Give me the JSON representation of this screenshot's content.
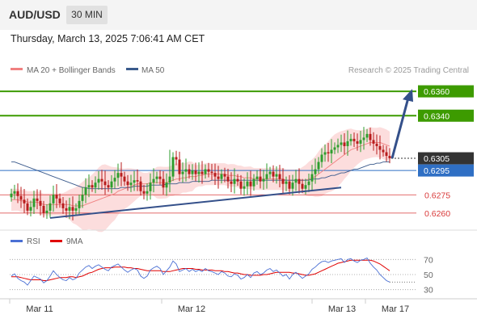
{
  "header": {
    "symbol": "AUD/USD",
    "timeframe": "30 MIN",
    "datetime": "Thursday, March 13, 2025 7:06:41 AM CET"
  },
  "legend": {
    "items": [
      {
        "label": "MA 20 + Bollinger Bands",
        "color": "#f08080"
      },
      {
        "label": "MA 50",
        "color": "#3a5a8c"
      }
    ],
    "credit": "Research © 2025 Trading Central"
  },
  "colors": {
    "bull": "#2e9e2e",
    "bear": "#b81d1d",
    "resistance": "#3d9b00",
    "support": "#d93a3a",
    "current": "#333333",
    "pivot": "#2f6fc4",
    "trendline": "#34508a",
    "bands": "#fcdddd",
    "ma20": "#f08080",
    "ma50": "#3a5a8c",
    "rsi": "#4a6fd4",
    "rsi_ma": "#e00000"
  },
  "chart_data": [
    {
      "type": "candlestick",
      "title": "AUD/USD",
      "price_range": [
        0.6248,
        0.6372
      ],
      "x_tick_labels": [
        "Mar 11",
        "Mar 12",
        "Mar 13",
        "Mar 17"
      ],
      "levels": [
        {
          "value": 0.636,
          "label": "0.6360",
          "kind": "resistance"
        },
        {
          "value": 0.634,
          "label": "0.6340",
          "kind": "resistance"
        },
        {
          "value": 0.6305,
          "label": "0.6305",
          "kind": "current"
        },
        {
          "value": 0.6295,
          "label": "0.6295",
          "kind": "pivot"
        },
        {
          "value": 0.6275,
          "label": "0.6275",
          "kind": "support"
        },
        {
          "value": 0.626,
          "label": "0.6260",
          "kind": "support"
        }
      ],
      "support_trendline": [
        {
          "bar": 0,
          "price": 0.6256
        },
        {
          "bar": 106,
          "price": 0.6281
        }
      ],
      "forecast_arrow": [
        {
          "bar": 117,
          "price": 0.6305
        },
        {
          "bar": 122,
          "price": 0.636
        }
      ],
      "series": [
        {
          "name": "Close",
          "values": [
            0.6276,
            0.6278,
            0.6274,
            0.6271,
            0.6268,
            0.6262,
            0.6265,
            0.6272,
            0.627,
            0.6266,
            0.626,
            0.6262,
            0.6268,
            0.6275,
            0.6272,
            0.6268,
            0.6264,
            0.6262,
            0.6265,
            0.6262,
            0.6264,
            0.627,
            0.6275,
            0.6281,
            0.6283,
            0.6281,
            0.6285,
            0.6288,
            0.6286,
            0.6283,
            0.6281,
            0.6286,
            0.6289,
            0.6293,
            0.629,
            0.6286,
            0.6283,
            0.6285,
            0.6287,
            0.6286,
            0.6278,
            0.6276,
            0.6278,
            0.6285,
            0.6288,
            0.629,
            0.6288,
            0.6281,
            0.6285,
            0.629,
            0.6306,
            0.6304,
            0.6292,
            0.6294,
            0.6296,
            0.6292,
            0.6295,
            0.6292,
            0.6294,
            0.6292,
            0.6296,
            0.6294,
            0.6293,
            0.629,
            0.6288,
            0.6292,
            0.629,
            0.6286,
            0.6284,
            0.6288,
            0.6286,
            0.628,
            0.6282,
            0.6286,
            0.6282,
            0.6288,
            0.629,
            0.6286,
            0.6288,
            0.6292,
            0.6294,
            0.629,
            0.6292,
            0.6288,
            0.6284,
            0.6286,
            0.628,
            0.6285,
            0.6288,
            0.6284,
            0.628,
            0.6283,
            0.6286,
            0.6292,
            0.6296,
            0.6302,
            0.6308,
            0.631,
            0.6309,
            0.6312,
            0.6314,
            0.6316,
            0.6318,
            0.6315,
            0.6319,
            0.6321,
            0.6319,
            0.6317,
            0.632,
            0.6322,
            0.6325,
            0.632,
            0.6317,
            0.6315,
            0.6312,
            0.631,
            0.6307,
            0.6305
          ]
        },
        {
          "name": "MA 20",
          "values": [
            0.6271,
            0.6271,
            0.6271,
            0.627,
            0.627,
            0.6269,
            0.6269,
            0.6269,
            0.6269,
            0.6268,
            0.6267,
            0.6267,
            0.6267,
            0.6267,
            0.6267,
            0.6267,
            0.6267,
            0.6267,
            0.6267,
            0.6266,
            0.6266,
            0.6266,
            0.6266,
            0.6267,
            0.6268,
            0.6269,
            0.627,
            0.6271,
            0.6272,
            0.6273,
            0.6274,
            0.6275,
            0.6276,
            0.6278,
            0.6279,
            0.628,
            0.6281,
            0.6282,
            0.6283,
            0.6284,
            0.6284,
            0.6284,
            0.6284,
            0.6285,
            0.6285,
            0.6285,
            0.6285,
            0.6285,
            0.6285,
            0.6286,
            0.6287,
            0.6288,
            0.6288,
            0.6289,
            0.6289,
            0.629,
            0.629,
            0.629,
            0.6291,
            0.6291,
            0.6292,
            0.6292,
            0.6292,
            0.6292,
            0.6292,
            0.6292,
            0.6292,
            0.6291,
            0.6291,
            0.6291,
            0.629,
            0.629,
            0.6289,
            0.6289,
            0.6289,
            0.6288,
            0.6288,
            0.6288,
            0.6288,
            0.6288,
            0.6288,
            0.6288,
            0.6288,
            0.6288,
            0.6288,
            0.6287,
            0.6287,
            0.6287,
            0.6287,
            0.6287,
            0.6287,
            0.6287,
            0.6288,
            0.6289,
            0.629,
            0.6292,
            0.6294,
            0.6296,
            0.6298,
            0.63,
            0.6302,
            0.6304,
            0.6306,
            0.6308,
            0.631,
            0.6312,
            0.6313,
            0.6314,
            0.6315,
            0.6316,
            0.6317,
            0.6318,
            0.6318,
            0.6318,
            0.6318,
            0.6317,
            0.6316,
            0.6315
          ]
        },
        {
          "name": "MA 50",
          "values": [
            0.6302,
            0.6302,
            0.6301,
            0.63,
            0.6299,
            0.6298,
            0.6297,
            0.6296,
            0.6295,
            0.6294,
            0.6293,
            0.6292,
            0.6291,
            0.629,
            0.6289,
            0.6288,
            0.6287,
            0.6286,
            0.6285,
            0.6284,
            0.6283,
            0.6282,
            0.6281,
            0.6281,
            0.628,
            0.628,
            0.628,
            0.628,
            0.628,
            0.628,
            0.628,
            0.628,
            0.628,
            0.628,
            0.6281,
            0.6281,
            0.6281,
            0.6281,
            0.6282,
            0.6282,
            0.6282,
            0.6282,
            0.6282,
            0.6283,
            0.6283,
            0.6283,
            0.6283,
            0.6283,
            0.6284,
            0.6284,
            0.6284,
            0.6284,
            0.6285,
            0.6285,
            0.6285,
            0.6285,
            0.6286,
            0.6286,
            0.6286,
            0.6286,
            0.6286,
            0.6286,
            0.6287,
            0.6287,
            0.6287,
            0.6287,
            0.6287,
            0.6287,
            0.6287,
            0.6287,
            0.6287,
            0.6287,
            0.6287,
            0.6287,
            0.6287,
            0.6287,
            0.6287,
            0.6287,
            0.6287,
            0.6287,
            0.6287,
            0.6287,
            0.6287,
            0.6287,
            0.6287,
            0.6287,
            0.6287,
            0.6287,
            0.6287,
            0.6287,
            0.6287,
            0.6287,
            0.6287,
            0.6288,
            0.6288,
            0.6288,
            0.6289,
            0.6289,
            0.629,
            0.6291,
            0.6291,
            0.6292,
            0.6293,
            0.6293,
            0.6294,
            0.6295,
            0.6296,
            0.6296,
            0.6297,
            0.6298,
            0.6299,
            0.63,
            0.63,
            0.6301,
            0.6301,
            0.6302,
            0.6302,
            0.6302
          ]
        }
      ]
    },
    {
      "type": "line",
      "title": "RSI",
      "ylim": [
        20,
        80
      ],
      "y_ticks": [
        70,
        50,
        30
      ],
      "series": [
        {
          "name": "RSI",
          "values": [
            48,
            51,
            45,
            42,
            40,
            36,
            42,
            48,
            46,
            44,
            39,
            42,
            48,
            55,
            50,
            46,
            43,
            42,
            46,
            43,
            45,
            52,
            56,
            60,
            62,
            58,
            61,
            63,
            60,
            57,
            55,
            60,
            62,
            64,
            60,
            56,
            53,
            56,
            58,
            56,
            48,
            45,
            48,
            56,
            59,
            61,
            58,
            50,
            55,
            60,
            68,
            64,
            54,
            56,
            58,
            54,
            57,
            54,
            56,
            54,
            58,
            55,
            54,
            52,
            50,
            54,
            52,
            48,
            47,
            51,
            49,
            44,
            46,
            50,
            46,
            52,
            54,
            50,
            52,
            56,
            58,
            54,
            56,
            52,
            48,
            50,
            44,
            50,
            53,
            49,
            45,
            48,
            51,
            57,
            60,
            64,
            67,
            68,
            66,
            68,
            69,
            70,
            71,
            66,
            70,
            71,
            68,
            66,
            69,
            70,
            72,
            65,
            60,
            56,
            50,
            46,
            42,
            40
          ]
        },
        {
          "name": "9MA",
          "values": [
            47,
            47,
            47,
            46,
            45,
            44,
            43,
            43,
            43,
            43,
            42,
            42,
            43,
            44,
            45,
            46,
            46,
            46,
            47,
            47,
            46,
            47,
            48,
            50,
            52,
            53,
            55,
            57,
            58,
            59,
            59,
            59,
            60,
            60,
            60,
            60,
            59,
            59,
            58,
            58,
            57,
            56,
            55,
            55,
            55,
            55,
            55,
            54,
            54,
            54,
            55,
            56,
            57,
            58,
            58,
            58,
            58,
            57,
            57,
            56,
            56,
            56,
            56,
            55,
            55,
            55,
            54,
            54,
            53,
            52,
            52,
            51,
            50,
            50,
            49,
            49,
            49,
            49,
            50,
            50,
            51,
            52,
            53,
            53,
            53,
            53,
            53,
            52,
            52,
            51,
            50,
            49,
            49,
            50,
            51,
            53,
            55,
            57,
            59,
            61,
            63,
            65,
            66,
            67,
            68,
            69,
            69,
            69,
            69,
            69,
            69,
            69,
            68,
            66,
            64,
            61,
            58,
            55
          ]
        }
      ]
    }
  ]
}
